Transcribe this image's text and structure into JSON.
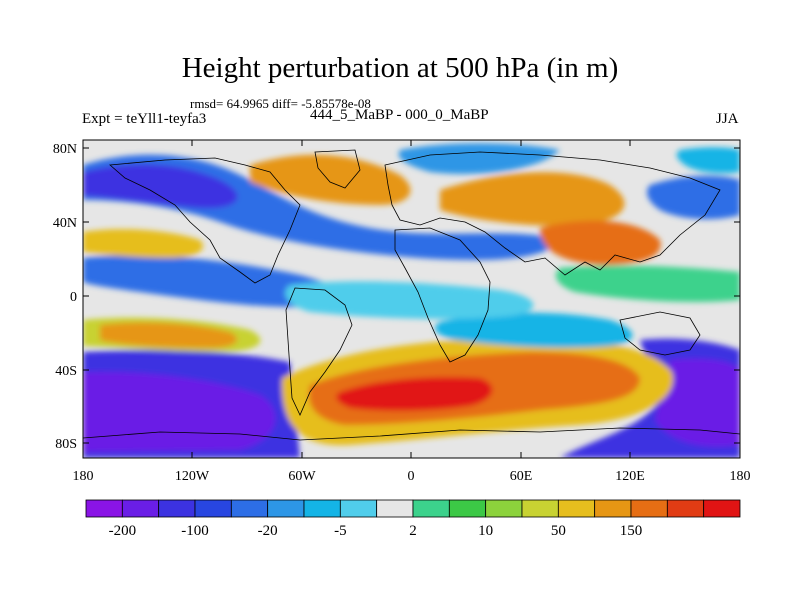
{
  "title": "Height perturbation at 500 hPa (in m)",
  "stats": "rmsd= 64.9965 diff= -5.85578e-08",
  "experiment": "Expt = teYll1-teyfa3",
  "period": "444_5_MaBP - 000_0_MaBP",
  "season": "JJA",
  "lat_ticks": [
    "80N",
    "40N",
    "0",
    "40S",
    "80S"
  ],
  "lon_ticks": [
    "180",
    "120W",
    "60W",
    "0",
    "60E",
    "120E",
    "180"
  ],
  "colorbar": {
    "colors": [
      "#8a14e6",
      "#6a1ee6",
      "#3c32e1",
      "#2846e1",
      "#2d6ee6",
      "#2d96e6",
      "#14b4e6",
      "#50cdeb",
      "#e6e6e6",
      "#3cd28c",
      "#3cc846",
      "#8cd23c",
      "#c8d232",
      "#e6be1e",
      "#e69614",
      "#e66e14",
      "#e13c14",
      "#e11414"
    ],
    "labels": [
      "-200",
      "-100",
      "-20",
      "-5",
      "2",
      "10",
      "50",
      "150"
    ]
  },
  "map_colors": {
    "background": "#e6e6e6",
    "deep_purple": "#6a1ee6",
    "dark_blue": "#3c32e1",
    "blue": "#2d6ee6",
    "light_blue": "#2d96e6",
    "cyan": "#14b4e6",
    "light_cyan": "#50cdeb",
    "green": "#3cd28c",
    "lime": "#8cd23c",
    "yellow": "#c8d232",
    "orange_yellow": "#e6be1e",
    "orange": "#e69614",
    "dark_orange": "#e66e14",
    "red_orange": "#e13c14",
    "red": "#e11414"
  }
}
